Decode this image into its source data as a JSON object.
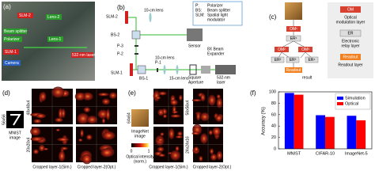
{
  "panel_a": {
    "label": "(a)",
    "callouts": [
      "SLM-2",
      "Lens-2",
      "Beam splitter",
      "Polarizer",
      "Lens-1",
      "SLM-1",
      "Camera",
      "532-nm laser"
    ]
  },
  "panel_b": {
    "label": "(b)",
    "components": [
      "SLM-2",
      "10-cm lens",
      "BS-2",
      "P-3",
      "P-2",
      "Sensor",
      "8X Beam",
      "Expander",
      "SLM-1",
      "BS-1",
      "P-1",
      "10-cm lens",
      "15-cm lens",
      "Square",
      "Aperture",
      "532-nm",
      "laser"
    ],
    "legend": [
      "P:",
      "Polarizer",
      "BS:",
      "Beam splitter",
      "SLM:",
      "Spatial light",
      "modulator"
    ]
  },
  "panel_c": {
    "label": "(c)",
    "nodes": [
      "OM¹",
      "ER¹",
      "OM²",
      "OM³",
      "ER²",
      "ER³",
      "ER⁴",
      "Readout",
      "result"
    ],
    "legend": [
      "OM",
      "Optical",
      "modulation layer",
      "ER",
      "Electronic",
      "relay layer",
      "Readout",
      "Readout layer"
    ]
  },
  "panel_d": {
    "label": "(d)",
    "input_size": "56x56",
    "input_name": [
      "MNIST",
      "image"
    ],
    "row_labels": [
      "48x48x4",
      "20x20x4"
    ],
    "captions": [
      "Cropped layer-1(Sim.)",
      "Cropped layer-2(Opt.)"
    ]
  },
  "panel_e": {
    "label": "(e)",
    "input_size": "64x64",
    "input_name": [
      "ImageNet",
      "image"
    ],
    "colorbar": [
      "0",
      "1",
      "Optical intensity",
      "(norm.)"
    ],
    "row_labels": [
      "56x56x4",
      "24x24x16"
    ],
    "captions": [
      "Cropped layer-1(Sim.)",
      "Cropped layer-2(Opt.)"
    ]
  },
  "chart_data": {
    "type": "bar",
    "label": "(f)",
    "ylabel": "Accuracy (%)",
    "categories": [
      "MNIST",
      "CIFAR-10",
      "ImageNet-5"
    ],
    "series": [
      {
        "name": "Simulation",
        "color": "#0000ff",
        "values": [
          98,
          59,
          58
        ]
      },
      {
        "name": "Optical",
        "color": "#ff0000",
        "values": [
          95,
          56,
          50
        ]
      }
    ],
    "ylim": [
      0,
      100
    ],
    "yticks": [
      0,
      20,
      40,
      60,
      80,
      100
    ],
    "legend": "upper right"
  }
}
